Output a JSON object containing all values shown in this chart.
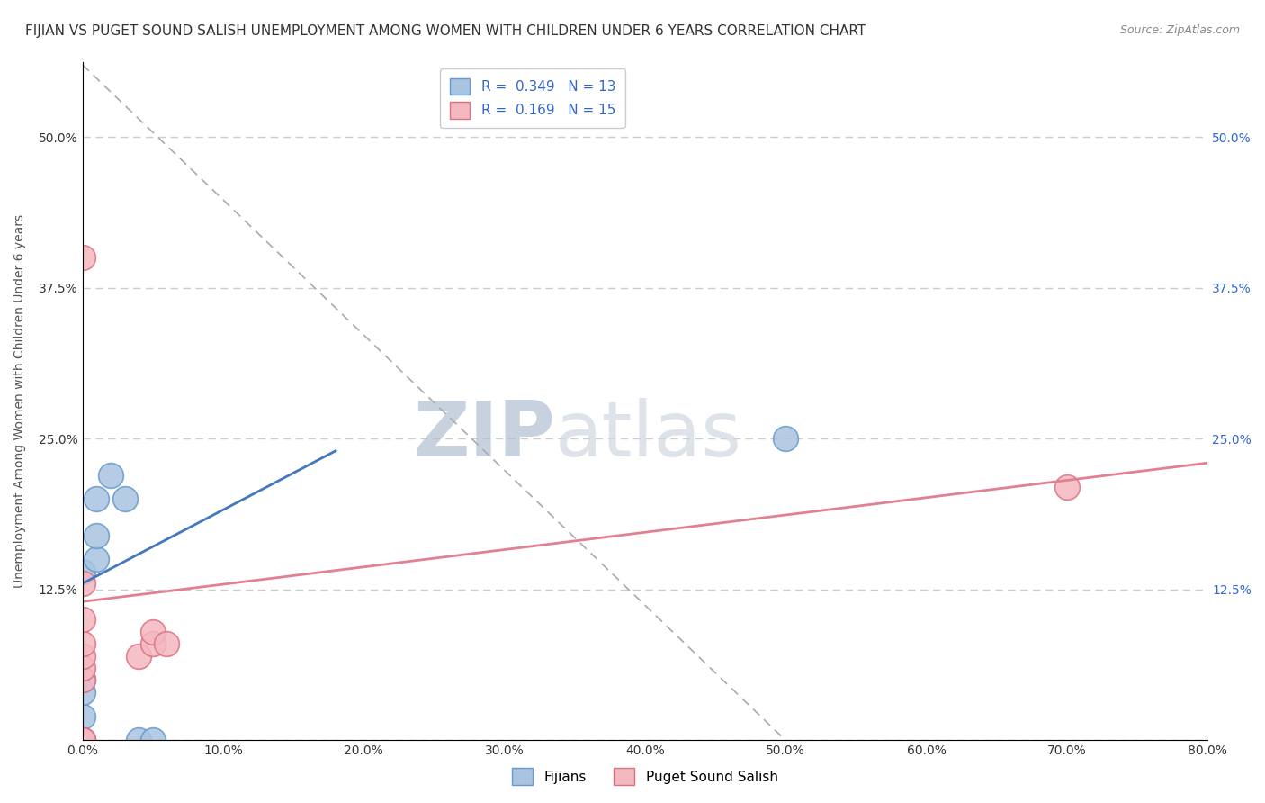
{
  "title": "FIJIAN VS PUGET SOUND SALISH UNEMPLOYMENT AMONG WOMEN WITH CHILDREN UNDER 6 YEARS CORRELATION CHART",
  "source": "Source: ZipAtlas.com",
  "ylabel": "Unemployment Among Women with Children Under 6 years",
  "watermark_zip": "ZIP",
  "watermark_atlas": "atlas",
  "xlim": [
    0,
    0.8
  ],
  "ylim": [
    0,
    0.5625
  ],
  "xticks": [
    0.0,
    0.1,
    0.2,
    0.3,
    0.4,
    0.5,
    0.6,
    0.7,
    0.8
  ],
  "yticks": [
    0.0,
    0.125,
    0.25,
    0.375,
    0.5
  ],
  "fijian_color": "#a8c4e0",
  "fijian_edge": "#6699cc",
  "salish_color": "#f4b8c1",
  "salish_edge": "#e07080",
  "fijian_R": 0.349,
  "fijian_N": 13,
  "salish_R": 0.169,
  "salish_N": 15,
  "fijian_scatter_x": [
    0.0,
    0.0,
    0.0,
    0.0,
    0.0,
    0.01,
    0.01,
    0.01,
    0.02,
    0.03,
    0.04,
    0.05,
    0.5
  ],
  "fijian_scatter_y": [
    0.0,
    0.02,
    0.04,
    0.05,
    0.14,
    0.15,
    0.17,
    0.2,
    0.22,
    0.2,
    0.0,
    0.0,
    0.25
  ],
  "salish_scatter_x": [
    0.0,
    0.0,
    0.0,
    0.0,
    0.0,
    0.0,
    0.0,
    0.0,
    0.0,
    0.0,
    0.04,
    0.05,
    0.05,
    0.06,
    0.7
  ],
  "salish_scatter_y": [
    0.0,
    0.0,
    0.0,
    0.05,
    0.06,
    0.07,
    0.08,
    0.1,
    0.13,
    0.4,
    0.07,
    0.08,
    0.09,
    0.08,
    0.21
  ],
  "fijian_line_x": [
    0.0,
    0.18
  ],
  "fijian_line_y": [
    0.13,
    0.24
  ],
  "salish_line_x": [
    0.0,
    0.8
  ],
  "salish_line_y": [
    0.115,
    0.23
  ],
  "fijian_trend_x": [
    0.0,
    0.5
  ],
  "fijian_trend_y": [
    0.56,
    0.0
  ],
  "grid_color": "#cccccc",
  "background_color": "#ffffff",
  "title_fontsize": 11,
  "axis_fontsize": 10,
  "tick_fontsize": 10,
  "dot_size": 400
}
